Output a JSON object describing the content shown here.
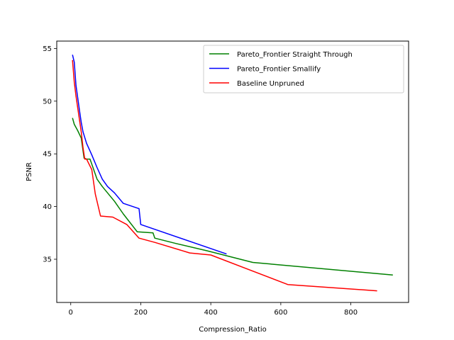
{
  "chart_data": {
    "type": "line",
    "title": "",
    "xlabel": "Compression_Ratio",
    "ylabel": "PSNR",
    "xlim": [
      -40,
      965
    ],
    "ylim": [
      30.9,
      55.7
    ],
    "xticks": [
      0,
      200,
      400,
      600,
      800
    ],
    "yticks": [
      35,
      40,
      45,
      50,
      55
    ],
    "grid": false,
    "legend": "top-right",
    "series": [
      {
        "name": "Pareto_Frontier Straight Through",
        "color": "#008000",
        "x": [
          5,
          10,
          20,
          30,
          38,
          45,
          55,
          75,
          90,
          105,
          125,
          150,
          190,
          235,
          240,
          300,
          390,
          520,
          920
        ],
        "y": [
          48.4,
          47.8,
          47.2,
          46.5,
          44.6,
          44.5,
          44.5,
          42.6,
          41.9,
          41.3,
          40.5,
          39.3,
          37.6,
          37.5,
          37.0,
          36.5,
          35.8,
          34.7,
          33.5
        ]
      },
      {
        "name": "Pareto_Frontier Smallify",
        "color": "#0000ff",
        "x": [
          5,
          10,
          15,
          20,
          25,
          30,
          35,
          45,
          60,
          75,
          90,
          105,
          125,
          150,
          195,
          200,
          445
        ],
        "y": [
          54.4,
          53.7,
          51.5,
          50.3,
          49.1,
          48.0,
          47.1,
          46.0,
          44.9,
          43.7,
          42.6,
          41.9,
          41.3,
          40.3,
          39.8,
          38.3,
          35.5
        ]
      },
      {
        "name": "Baseline Unpruned",
        "color": "#ff0000",
        "x": [
          5,
          10,
          15,
          25,
          30,
          35,
          40,
          45,
          60,
          70,
          85,
          120,
          160,
          195,
          240,
          340,
          400,
          620,
          875
        ],
        "y": [
          53.9,
          51.8,
          50.5,
          48.2,
          47.1,
          45.6,
          44.5,
          44.5,
          43.5,
          41.2,
          39.1,
          39.0,
          38.3,
          37.0,
          36.6,
          35.6,
          35.4,
          32.6,
          32.0
        ]
      }
    ]
  }
}
